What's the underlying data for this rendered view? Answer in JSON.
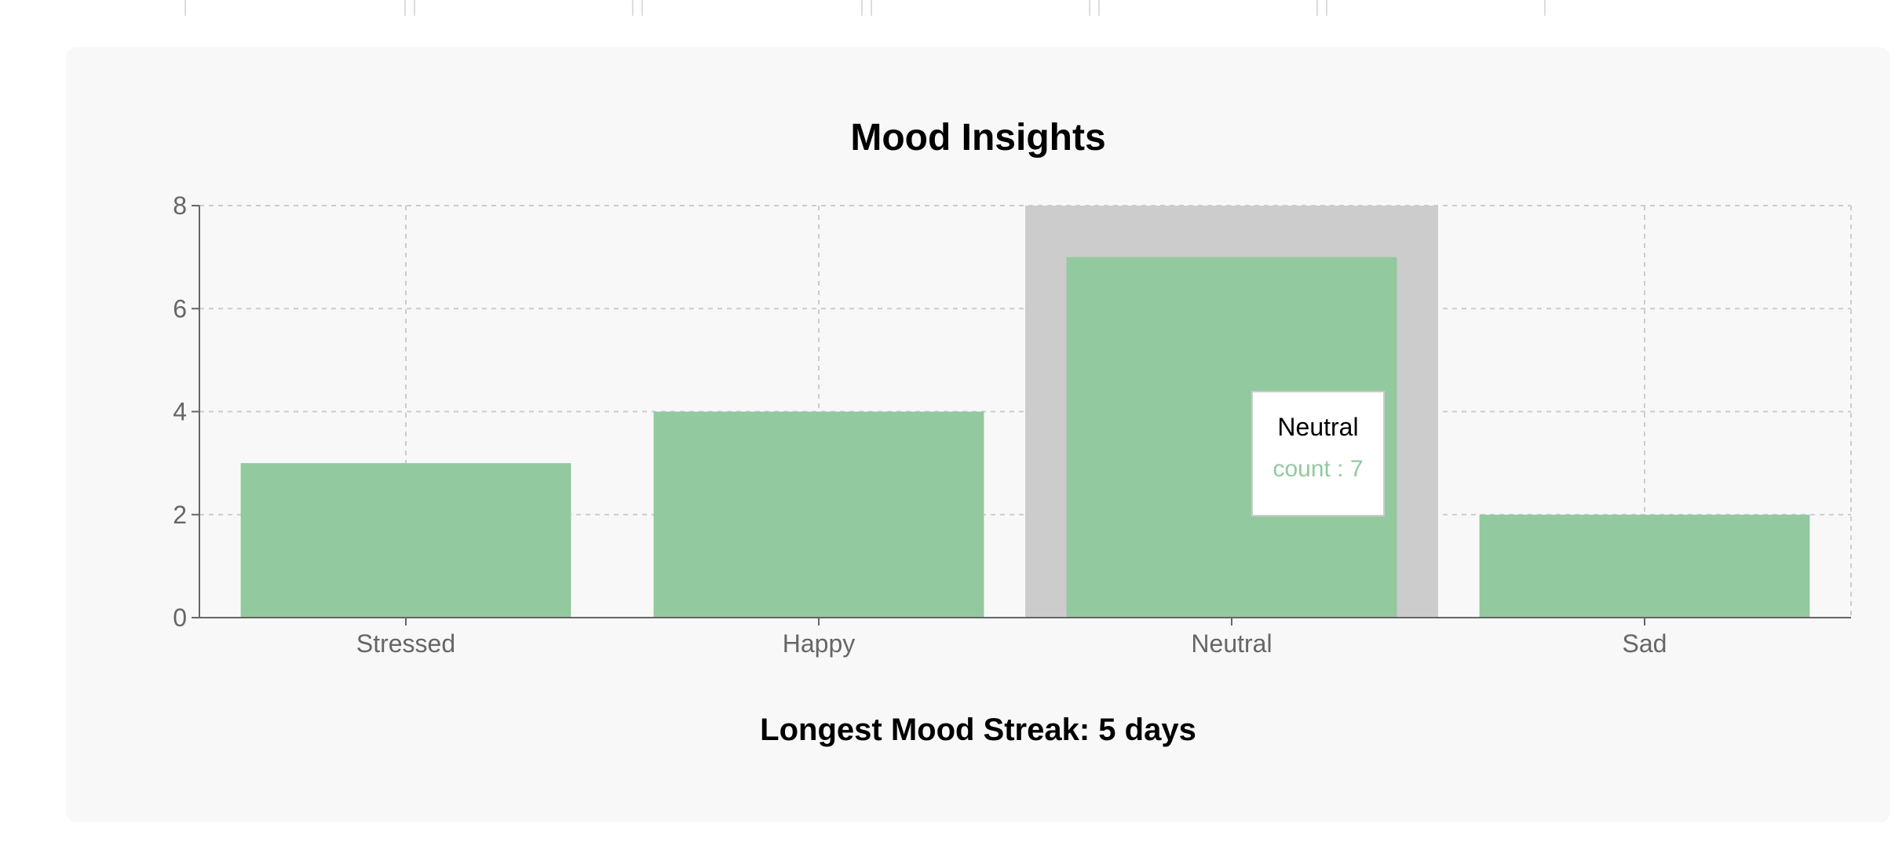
{
  "colors": {
    "bar": "#93c99f",
    "highlight": "#cccccc",
    "grid": "#cccccc",
    "axis": "#666666",
    "panel": "#f8f8f9"
  },
  "tooltip": {
    "label": "Neutral",
    "value_text": "count : 7"
  },
  "footer": {
    "streak_text": "Longest Mood Streak: 5 days"
  },
  "chart_data": {
    "type": "bar",
    "title": "Mood Insights",
    "categories": [
      "Stressed",
      "Happy",
      "Neutral",
      "Sad"
    ],
    "series": [
      {
        "name": "count",
        "values": [
          3,
          4,
          7,
          2
        ]
      }
    ],
    "ylim": [
      0,
      8
    ],
    "yticks": [
      0,
      2,
      4,
      6,
      8
    ],
    "grid": true,
    "highlighted_category": "Neutral"
  }
}
